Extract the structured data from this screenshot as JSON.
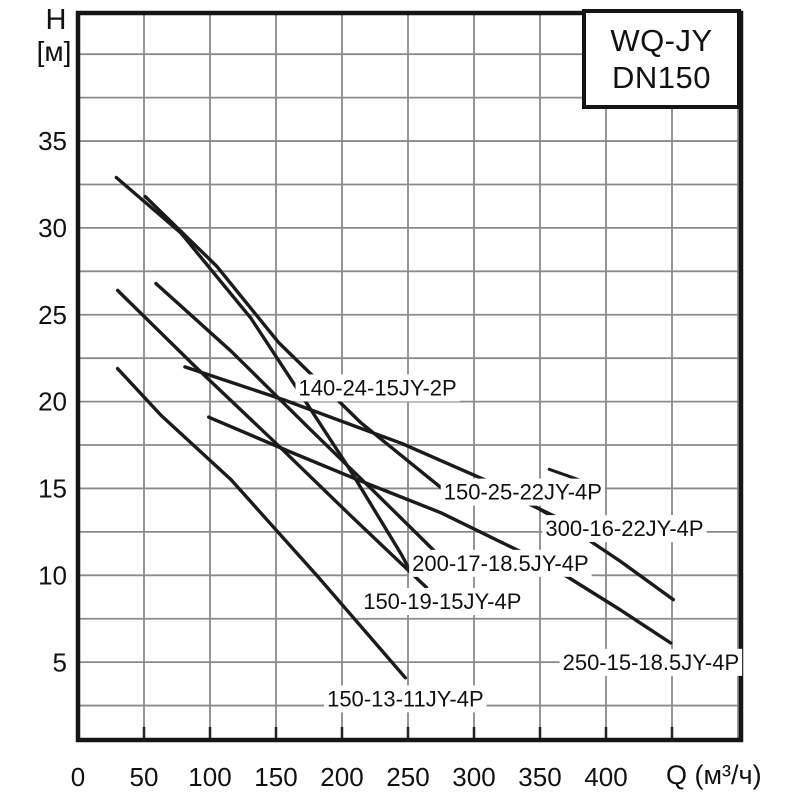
{
  "title_box": {
    "line1": "WQ-JY",
    "line2": "DN150"
  },
  "axes": {
    "y_title_line1": "H",
    "y_title_line2": "[м]",
    "x_title": "Q (м³/ч)"
  },
  "chart_data": {
    "type": "line",
    "title": "WQ-JY DN150 pump performance curves",
    "xlabel": "Q (м³/ч)",
    "ylabel": "H [м]",
    "xlim": [
      0,
      503
    ],
    "ylim": [
      0,
      42.4
    ],
    "x_ticks": [
      0,
      50,
      100,
      150,
      200,
      250,
      300,
      350,
      400
    ],
    "y_ticks": [
      5,
      10,
      15,
      20,
      25,
      30,
      35
    ],
    "x_grid_step": 50,
    "x_grid_max": 500,
    "y_grid_step": 2.5,
    "y_grid_min": 2.5,
    "y_grid_max": 40,
    "grid": true,
    "legend_position": "labels-on-curves",
    "colors": {
      "curve": "#1b1b1b",
      "grid": "#8a8a8a",
      "axis": "#151515",
      "background": "#ffffff",
      "text": "#111111"
    },
    "curves": [
      {
        "name": "140-24-15JY-2P",
        "label_anchor": {
          "q": 227,
          "h": 20.8
        },
        "segments": [
          [
            [
              29,
              32.9
            ],
            [
              78,
              29.7
            ],
            [
              131,
              24.8
            ],
            [
              169,
              20.4
            ],
            [
              205,
              16.2
            ],
            [
              245,
              11.2
            ],
            [
              252,
              10.2
            ]
          ]
        ]
      },
      {
        "name": "150-25-22JY-4P",
        "label_anchor": {
          "q": 337,
          "h": 14.8
        },
        "segments": [
          [
            [
              51,
              31.8
            ],
            [
              105,
              27.8
            ],
            [
              152,
              23.4
            ],
            [
              214,
              18.8
            ],
            [
              279,
              14.8
            ]
          ],
          [
            [
              339,
              14.2
            ],
            [
              361,
              13.4
            ]
          ]
        ]
      },
      {
        "name": "300-16-22JY-4P",
        "label_anchor": {
          "q": 414,
          "h": 12.7
        },
        "segments": [
          [
            [
              81,
              22.0
            ],
            [
              156,
              20.1
            ],
            [
              245,
              17.6
            ],
            [
              320,
              15.1
            ],
            [
              366,
              13.1
            ],
            [
              411,
              10.8
            ],
            [
              451,
              8.6
            ]
          ]
        ]
      },
      {
        "name": "200-17-18.5JY-4P",
        "label_anchor": {
          "q": 320,
          "h": 10.7
        },
        "segments": [
          [
            [
              59,
              26.8
            ],
            [
              116,
              22.9
            ],
            [
              176,
              18.4
            ],
            [
              226,
              14.7
            ],
            [
              270,
              11.4
            ]
          ]
        ]
      },
      {
        "name": "150-19-15JY-4P",
        "label_anchor": {
          "q": 276,
          "h": 8.5
        },
        "segments": [
          [
            [
              30,
              26.4
            ],
            [
              89,
              22.0
            ],
            [
              150,
              17.6
            ],
            [
              207,
              13.4
            ],
            [
              264,
              9.3
            ]
          ]
        ]
      },
      {
        "name": "250-15-18.5JY-4P",
        "label_anchor": {
          "q": 434,
          "h": 5.0
        },
        "segments": [
          [
            [
              99,
              19.1
            ],
            [
              161,
              17.1
            ],
            [
              212,
              15.5
            ],
            [
              275,
              13.6
            ],
            [
              337,
              11.3
            ],
            [
              371,
              9.9
            ],
            [
              411,
              8.0
            ],
            [
              449,
              6.1
            ]
          ]
        ]
      },
      {
        "name": "150-13-11JY-4P",
        "label_anchor": {
          "q": 248,
          "h": 2.9
        },
        "segments": [
          [
            [
              30,
              21.9
            ],
            [
              63,
              19.2
            ],
            [
              116,
              15.5
            ],
            [
              182,
              9.9
            ],
            [
              248,
              4.1
            ]
          ]
        ]
      }
    ],
    "extra_segments": [
      [
        [
          357,
          16.1
        ],
        [
          398,
          15.0
        ]
      ]
    ]
  }
}
